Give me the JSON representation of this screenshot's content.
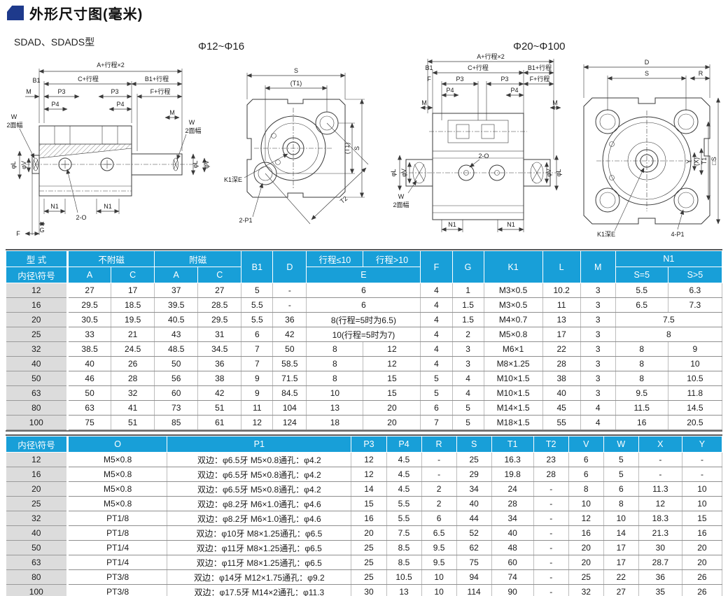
{
  "page": {
    "title": "外形尺寸图(毫米)",
    "subtitle": "SDAD、SDADS型",
    "cap_small": "Φ12~Φ16",
    "cap_large": "Φ20~Φ100"
  },
  "dims": {
    "a_stroke2": "A+行程×2",
    "c_stroke": "C+行程",
    "b1_stroke": "B1+行程",
    "f_stroke": "F+行程",
    "b1": "B1",
    "m": "M",
    "p3": "P3",
    "p4": "P4",
    "w": "W",
    "w_flat": "2面幅",
    "phi_l": "φL",
    "phi_v": "φV",
    "n1": "N1",
    "g": "G",
    "f": "F",
    "o2": "2-O",
    "p1_2": "2-P1",
    "p1_4": "4-P1",
    "s": "S",
    "t1_paren": "(T1)",
    "t2": "T2",
    "k1e": "K1深E",
    "d": "D",
    "r": "R",
    "y": "Y",
    "x_paren": "(X)",
    "t1": "T1",
    "sq_s": "□S"
  },
  "table1": {
    "h_model": "型 式",
    "h_bore": "内径\\符号",
    "h_nomag": "不附磁",
    "h_mag": "附磁",
    "h_a": "A",
    "h_c": "C",
    "h_b1": "B1",
    "h_d": "D",
    "h_le10": "行程≤10",
    "h_gt10": "行程>10",
    "h_e": "E",
    "h_f": "F",
    "h_g": "G",
    "h_k1": "K1",
    "h_l": "L",
    "h_m": "M",
    "h_n1": "N1",
    "h_s5": "S=5",
    "h_sg5": "S>5",
    "rows": [
      [
        "12",
        "27",
        "17",
        "37",
        "27",
        "5",
        "-",
        [
          "6"
        ],
        "4",
        "1",
        "M3×0.5",
        "10.2",
        "3",
        [
          "5.5",
          "6.3"
        ]
      ],
      [
        "16",
        "29.5",
        "18.5",
        "39.5",
        "28.5",
        "5.5",
        "-",
        [
          "6"
        ],
        "4",
        "1.5",
        "M3×0.5",
        "11",
        "3",
        [
          "6.5",
          "7.3"
        ]
      ],
      [
        "20",
        "30.5",
        "19.5",
        "40.5",
        "29.5",
        "5.5",
        "36",
        [
          "8(行程=5时为6.5)"
        ],
        "4",
        "1.5",
        "M4×0.7",
        "13",
        "3",
        [
          "7.5"
        ]
      ],
      [
        "25",
        "33",
        "21",
        "43",
        "31",
        "6",
        "42",
        [
          "10(行程=5时为7)"
        ],
        "4",
        "2",
        "M5×0.8",
        "17",
        "3",
        [
          "8"
        ]
      ],
      [
        "32",
        "38.5",
        "24.5",
        "48.5",
        "34.5",
        "7",
        "50",
        [
          "8",
          "12"
        ],
        "4",
        "3",
        "M6×1",
        "22",
        "3",
        [
          "8",
          "9"
        ]
      ],
      [
        "40",
        "40",
        "26",
        "50",
        "36",
        "7",
        "58.5",
        [
          "8",
          "12"
        ],
        "4",
        "3",
        "M8×1.25",
        "28",
        "3",
        [
          "8",
          "10"
        ]
      ],
      [
        "50",
        "46",
        "28",
        "56",
        "38",
        "9",
        "71.5",
        [
          "8",
          "15"
        ],
        "5",
        "4",
        "M10×1.5",
        "38",
        "3",
        [
          "8",
          "10.5"
        ]
      ],
      [
        "63",
        "50",
        "32",
        "60",
        "42",
        "9",
        "84.5",
        [
          "10",
          "15"
        ],
        "5",
        "4",
        "M10×1.5",
        "40",
        "3",
        [
          "9.5",
          "11.8"
        ]
      ],
      [
        "80",
        "63",
        "41",
        "73",
        "51",
        "11",
        "104",
        [
          "13",
          "20"
        ],
        "6",
        "5",
        "M14×1.5",
        "45",
        "4",
        [
          "11.5",
          "14.5"
        ]
      ],
      [
        "100",
        "75",
        "51",
        "85",
        "61",
        "12",
        "124",
        [
          "18",
          "20"
        ],
        "7",
        "5",
        "M18×1.5",
        "55",
        "4",
        [
          "16",
          "20.5"
        ]
      ]
    ]
  },
  "table2": {
    "headers": [
      "内径\\符号",
      "O",
      "P1",
      "P3",
      "P4",
      "R",
      "S",
      "T1",
      "T2",
      "V",
      "W",
      "X",
      "Y"
    ],
    "rows": [
      [
        "12",
        "M5×0.8",
        "双边：φ6.5牙 M5×0.8通孔：φ4.2",
        "12",
        "4.5",
        "-",
        "25",
        "16.3",
        "23",
        "6",
        "5",
        "-",
        "-"
      ],
      [
        "16",
        "M5×0.8",
        "双边：φ6.5牙 M5×0.8通孔：φ4.2",
        "12",
        "4.5",
        "-",
        "29",
        "19.8",
        "28",
        "6",
        "5",
        "-",
        "-"
      ],
      [
        "20",
        "M5×0.8",
        "双边：φ6.5牙 M5×0.8通孔：φ4.2",
        "14",
        "4.5",
        "2",
        "34",
        "24",
        "-",
        "8",
        "6",
        "11.3",
        "10"
      ],
      [
        "25",
        "M5×0.8",
        "双边：φ8.2牙 M6×1.0通孔：φ4.6",
        "15",
        "5.5",
        "2",
        "40",
        "28",
        "-",
        "10",
        "8",
        "12",
        "10"
      ],
      [
        "32",
        "PT1/8",
        "双边：φ8.2牙 M6×1.0通孔：φ4.6",
        "16",
        "5.5",
        "6",
        "44",
        "34",
        "-",
        "12",
        "10",
        "18.3",
        "15"
      ],
      [
        "40",
        "PT1/8",
        "双边：φ10牙 M8×1.25通孔：φ6.5",
        "20",
        "7.5",
        "6.5",
        "52",
        "40",
        "-",
        "16",
        "14",
        "21.3",
        "16"
      ],
      [
        "50",
        "PT1/4",
        "双边：φ11牙 M8×1.25通孔：φ6.5",
        "25",
        "8.5",
        "9.5",
        "62",
        "48",
        "-",
        "20",
        "17",
        "30",
        "20"
      ],
      [
        "63",
        "PT1/4",
        "双边：φ11牙 M8×1.25通孔：φ6.5",
        "25",
        "8.5",
        "9.5",
        "75",
        "60",
        "-",
        "20",
        "17",
        "28.7",
        "20"
      ],
      [
        "80",
        "PT3/8",
        "双边：φ14牙 M12×1.75通孔：φ9.2",
        "25",
        "10.5",
        "10",
        "94",
        "74",
        "-",
        "25",
        "22",
        "36",
        "26"
      ],
      [
        "100",
        "PT3/8",
        "双边：φ17.5牙 M14×2通孔：φ11.3",
        "30",
        "13",
        "10",
        "114",
        "90",
        "-",
        "32",
        "27",
        "35",
        "26"
      ]
    ]
  },
  "colors": {
    "header_cyan": "#189fd8",
    "title_navy": "#1e3a8c",
    "row_label_gray": "#dcdcdc"
  }
}
